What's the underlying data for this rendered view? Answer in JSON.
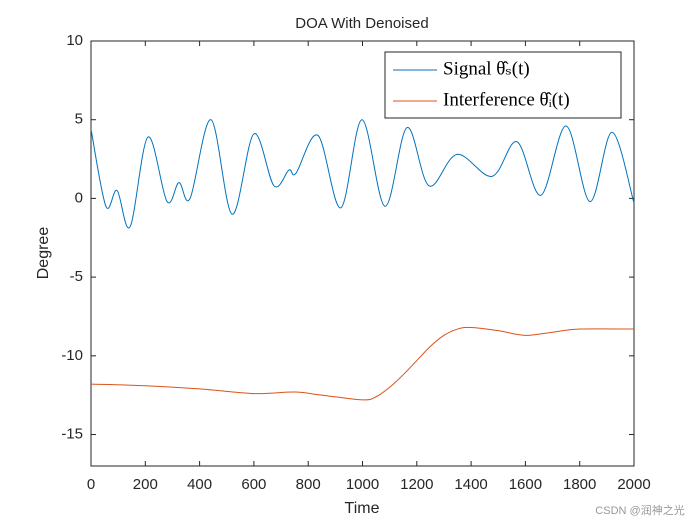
{
  "chart_data": {
    "type": "line",
    "title": "DOA With Denoised",
    "xlabel": "Time",
    "ylabel": "Degree",
    "xlim": [
      0,
      2000
    ],
    "ylim": [
      -17,
      10
    ],
    "xticks": [
      0,
      200,
      400,
      600,
      800,
      1000,
      1200,
      1400,
      1600,
      1800,
      2000
    ],
    "yticks": [
      -15,
      -10,
      -5,
      0,
      5,
      10
    ],
    "legend": "upper right",
    "grid": false,
    "series": [
      {
        "name": "Signal θ̂ₛ(t)",
        "color": "#0072bd",
        "x": [
          0,
          55,
          96,
          144,
          210,
          280,
          324,
          365,
          442,
          520,
          600,
          674,
          729,
          755,
          836,
          920,
          998,
          1083,
          1164,
          1245,
          1348,
          1477,
          1569,
          1657,
          1750,
          1838,
          1919,
          2000
        ],
        "values": [
          4.4,
          -0.5,
          0.5,
          -1.8,
          3.9,
          -0.2,
          1.0,
          0,
          5.0,
          -1.0,
          4.1,
          0.8,
          1.8,
          1.6,
          4.0,
          -0.6,
          5.0,
          -0.5,
          4.5,
          0.8,
          2.8,
          1.4,
          3.6,
          0.2,
          4.6,
          -0.2,
          4.2,
          -0.3
        ]
      },
      {
        "name": "Interference θ̂ᵢ(t)",
        "color": "#d95319",
        "x": [
          0,
          200,
          400,
          600,
          750,
          850,
          1000,
          1050,
          1100,
          1150,
          1200,
          1250,
          1300,
          1350,
          1400,
          1500,
          1600,
          1700,
          1800,
          2000
        ],
        "values": [
          -11.8,
          -11.9,
          -12.1,
          -12.4,
          -12.3,
          -12.5,
          -12.8,
          -12.6,
          -12.0,
          -11.2,
          -10.3,
          -9.4,
          -8.7,
          -8.3,
          -8.2,
          -8.4,
          -8.7,
          -8.5,
          -8.3,
          -8.3
        ]
      }
    ]
  },
  "watermark": "CSDN @润神之光"
}
